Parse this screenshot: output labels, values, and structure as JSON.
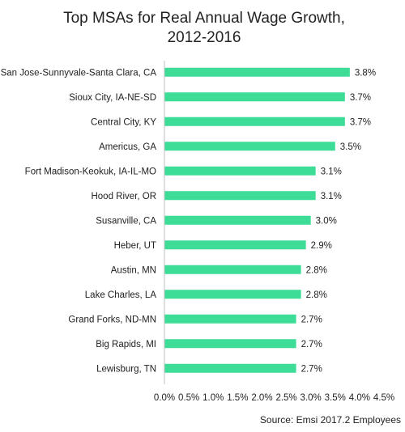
{
  "chart_data": {
    "type": "bar",
    "orientation": "horizontal",
    "title": "Top MSAs for Real Annual Wage Growth,",
    "subtitle": "2012-2016",
    "source": "Source: Emsi 2017.2 Employees",
    "categories": [
      "San Jose-Sunnyvale-Santa Clara, CA",
      "Sioux City, IA-NE-SD",
      "Central City, KY",
      "Americus, GA",
      "Fort Madison-Keokuk, IA-IL-MO",
      "Hood River, OR",
      "Susanville, CA",
      "Heber, UT",
      "Austin, MN",
      "Lake Charles, LA",
      "Grand Forks, ND-MN",
      "Big Rapids, MI",
      "Lewisburg, TN"
    ],
    "values": [
      3.8,
      3.7,
      3.7,
      3.5,
      3.1,
      3.1,
      3.0,
      2.9,
      2.8,
      2.8,
      2.7,
      2.7,
      2.7
    ],
    "value_labels": [
      "3.8%",
      "3.7%",
      "3.7%",
      "3.5%",
      "3.1%",
      "3.1%",
      "3.0%",
      "2.9%",
      "2.8%",
      "2.8%",
      "2.7%",
      "2.7%",
      "2.7%"
    ],
    "x_ticks": [
      0,
      0.5,
      1.0,
      1.5,
      2.0,
      2.5,
      3.0,
      3.5,
      4.0,
      4.5
    ],
    "x_tick_labels": [
      "0.0%",
      "0.5%",
      "1.0%",
      "1.5%",
      "2.0%",
      "2.5%",
      "3.0%",
      "3.5%",
      "4.0%",
      "4.5%"
    ],
    "xlim": [
      0,
      4.5
    ],
    "bar_color": "#3ddc97",
    "axis_color": "#bfbfbf",
    "text_color": "#222222",
    "grid": false,
    "legend": "none"
  }
}
